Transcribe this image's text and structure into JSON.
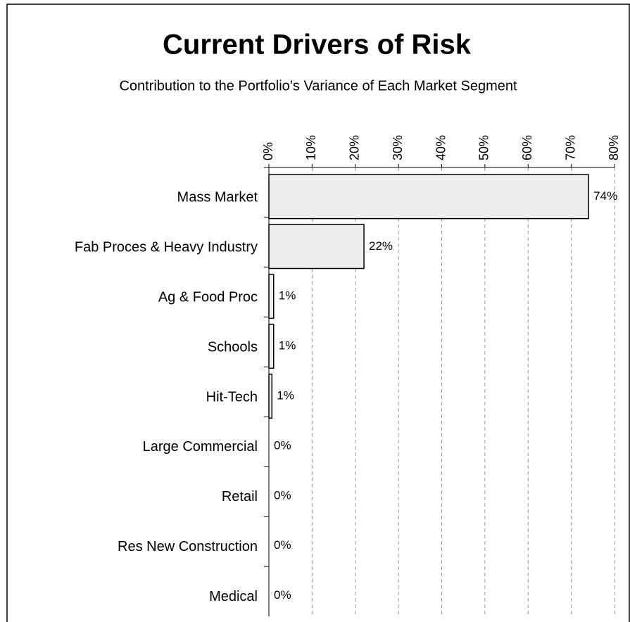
{
  "chart_data": {
    "type": "hbar",
    "title": "Current Drivers of Risk",
    "subtitle": "Contribution to the Portfolio’s Variance of Each Market Segment",
    "categories": [
      "Mass Market",
      "Fab Proces & Heavy Industry",
      "Ag & Food Proc",
      "Schools",
      "Hit-Tech",
      "Large Commercial",
      "Retail",
      "Res New Construction",
      "Medical"
    ],
    "values": [
      74,
      22,
      1.1,
      1.1,
      0.7,
      0,
      0,
      0,
      0
    ],
    "value_labels": [
      "74%",
      "22%",
      "1%",
      "1%",
      "1%",
      "0%",
      "0%",
      "0%",
      "0%"
    ],
    "color": "#eeeeee",
    "xlim": [
      0,
      80
    ],
    "xticks": [
      {
        "value": 0,
        "label": "0%"
      },
      {
        "value": 10,
        "label": "10%"
      },
      {
        "value": 20,
        "label": "20%"
      },
      {
        "value": 30,
        "label": "30%"
      },
      {
        "value": 40,
        "label": "40%"
      },
      {
        "value": 50,
        "label": "50%"
      },
      {
        "value": 60,
        "label": "60%"
      },
      {
        "value": 70,
        "label": "70%"
      },
      {
        "value": 80,
        "label": "80%"
      }
    ],
    "grid": true
  }
}
